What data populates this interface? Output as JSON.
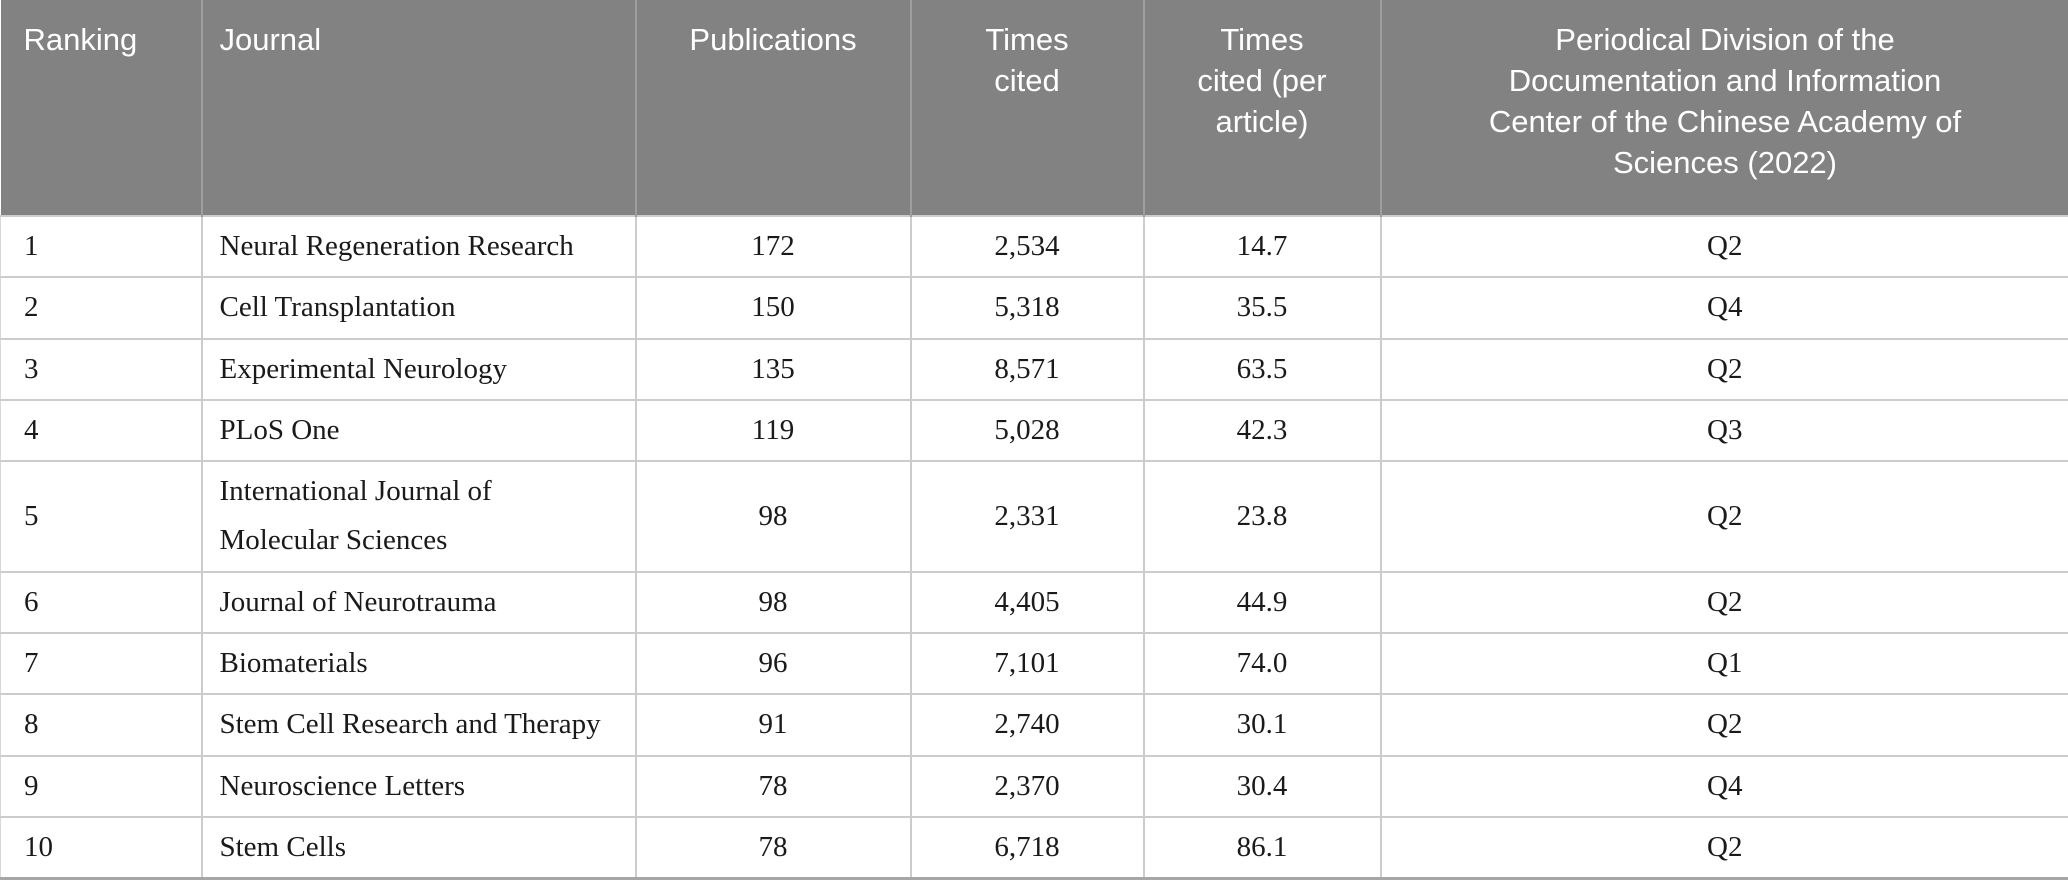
{
  "table": {
    "title_semantic": "Top 10 journals ranking table",
    "columns": [
      {
        "label": "Ranking",
        "align": "left"
      },
      {
        "label": "Journal",
        "align": "left"
      },
      {
        "label": "Publications",
        "align": "center"
      },
      {
        "label": "Times\ncited",
        "align": "center"
      },
      {
        "label": "Times\ncited (per\narticle)",
        "align": "center"
      },
      {
        "label": "Periodical Division of the\nDocumentation and Information\nCenter of the Chinese Academy of\nSciences (2022)",
        "align": "center"
      }
    ],
    "rows": [
      [
        "1",
        "Neural Regeneration Research",
        "172",
        "2,534",
        "14.7",
        "Q2"
      ],
      [
        "2",
        "Cell Transplantation",
        "150",
        "5,318",
        "35.5",
        "Q4"
      ],
      [
        "3",
        "Experimental Neurology",
        "135",
        "8,571",
        "63.5",
        "Q2"
      ],
      [
        "4",
        "PLoS One",
        "119",
        "5,028",
        "42.3",
        "Q3"
      ],
      [
        "5",
        "International Journal of Molecular Sciences",
        "98",
        "2,331",
        "23.8",
        "Q2"
      ],
      [
        "6",
        "Journal of Neurotrauma",
        "98",
        "4,405",
        "44.9",
        "Q2"
      ],
      [
        "7",
        "Biomaterials",
        "96",
        "7,101",
        "74.0",
        "Q1"
      ],
      [
        "8",
        "Stem Cell Research and Therapy",
        "91",
        "2,740",
        "30.1",
        "Q2"
      ],
      [
        "9",
        "Neuroscience Letters",
        "78",
        "2,370",
        "30.4",
        "Q4"
      ],
      [
        "10",
        "Stem Cells",
        "78",
        "6,718",
        "86.1",
        "Q2"
      ]
    ],
    "cell_names": [
      "rank-cell",
      "journal-cell",
      "publications-cell",
      "times-cited-cell",
      "times-cited-per-article-cell",
      "periodical-division-cell"
    ]
  },
  "colors": {
    "header_background": "#828282",
    "header_text": "#ffffff",
    "header_divider": "#9e9e9e",
    "body_text": "#1a1a1a",
    "grid_line": "#cccccc",
    "table_bottom_border": "#a6a6a6",
    "page_background": "#ffffff"
  },
  "chart_data": {
    "type": "table",
    "title": "",
    "categories": [
      "Ranking",
      "Journal",
      "Publications",
      "Times cited",
      "Times cited (per article)",
      "Periodical Division of the Documentation and Information Center of the Chinese Academy of Sciences (2022)"
    ],
    "series": [
      {
        "name": "Publications",
        "values": [
          172,
          150,
          135,
          119,
          98,
          98,
          96,
          91,
          78,
          78
        ]
      },
      {
        "name": "Times cited",
        "values": [
          2534,
          5318,
          8571,
          5028,
          2331,
          4405,
          7101,
          2740,
          2370,
          6718
        ]
      },
      {
        "name": "Times cited (per article)",
        "values": [
          14.7,
          35.5,
          63.5,
          42.3,
          23.8,
          44.9,
          74.0,
          30.1,
          30.4,
          86.1
        ]
      },
      {
        "name": "Periodical Division (2022)",
        "values": [
          "Q2",
          "Q4",
          "Q2",
          "Q3",
          "Q2",
          "Q2",
          "Q1",
          "Q2",
          "Q4",
          "Q2"
        ]
      }
    ],
    "x": [
      "Neural Regeneration Research",
      "Cell Transplantation",
      "Experimental Neurology",
      "PLoS One",
      "International Journal of Molecular Sciences",
      "Journal of Neurotrauma",
      "Biomaterials",
      "Stem Cell Research and Therapy",
      "Neuroscience Letters",
      "Stem Cells"
    ]
  }
}
